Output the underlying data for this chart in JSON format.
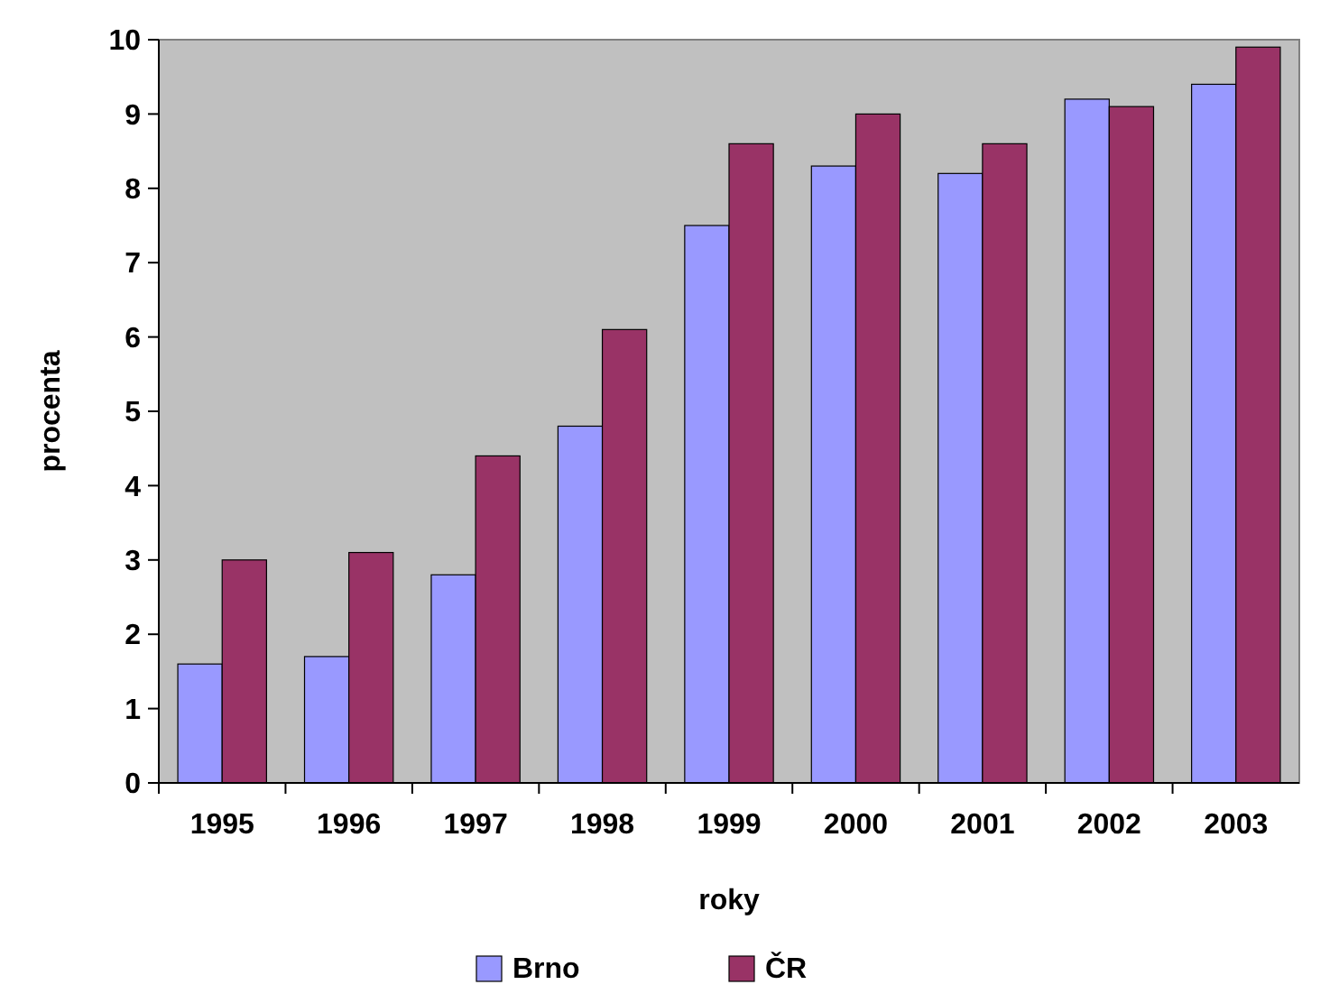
{
  "chart_data": {
    "type": "bar",
    "xlabel": "roky",
    "ylabel": "procenta",
    "categories": [
      "1995",
      "1996",
      "1997",
      "1998",
      "1999",
      "2000",
      "2001",
      "2002",
      "2003"
    ],
    "series": [
      {
        "name": "Brno",
        "color": "#9999ff",
        "values": [
          1.6,
          1.7,
          2.8,
          4.8,
          7.5,
          8.3,
          8.2,
          9.2,
          9.4
        ]
      },
      {
        "name": "ČR",
        "color": "#993366",
        "values": [
          3.0,
          3.1,
          4.4,
          6.1,
          8.6,
          9.0,
          8.6,
          9.1,
          9.9
        ]
      }
    ],
    "ylim": [
      0,
      10
    ],
    "yticks": [
      0,
      1,
      2,
      3,
      4,
      5,
      6,
      7,
      8,
      9,
      10
    ],
    "legend": "bottom"
  }
}
